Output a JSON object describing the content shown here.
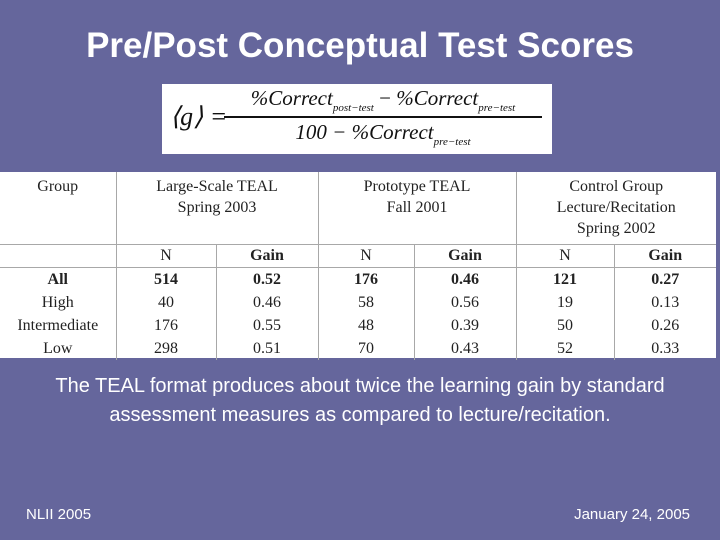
{
  "slide": {
    "title": "Pre/Post Conceptual Test Scores",
    "caption": "The TEAL format produces about twice the learning gain by standard assessment measures as compared to lecture/recitation.",
    "footer_left": "NLII 2005",
    "footer_right": "January 24, 2005"
  },
  "formula": {
    "lhs": "⟨g⟩ =",
    "numerator_a": "%Correct",
    "numerator_a_sub": "post−test",
    "numerator_op": " − ",
    "numerator_b": "%Correct",
    "numerator_b_sub": "pre−test",
    "denominator_a": "100 − %Correct",
    "denominator_sub": "pre−test"
  },
  "table": {
    "group_header": "Group",
    "col1_header_line1": "Large-Scale TEAL",
    "col1_header_line2": "Spring 2003",
    "col2_header_line1": "Prototype TEAL",
    "col2_header_line2": "Fall 2001",
    "col3_header_line1": "Control Group",
    "col3_header_line2": "Lecture/Recitation",
    "col3_header_line3": "Spring 2002",
    "n_label": "N",
    "gain_label": "Gain",
    "rows": [
      {
        "group": "All",
        "n1": "514",
        "g1": "0.52",
        "n2": "176",
        "g2": "0.46",
        "n3": "121",
        "g3": "0.27"
      },
      {
        "group": "High",
        "n1": "40",
        "g1": "0.46",
        "n2": "58",
        "g2": "0.56",
        "n3": "19",
        "g3": "0.13"
      },
      {
        "group": "Intermediate",
        "n1": "176",
        "g1": "0.55",
        "n2": "48",
        "g2": "0.39",
        "n3": "50",
        "g3": "0.26"
      },
      {
        "group": "Low",
        "n1": "298",
        "g1": "0.51",
        "n2": "70",
        "g2": "0.43",
        "n3": "52",
        "g3": "0.33"
      }
    ]
  },
  "colors": {
    "background": "#65669c",
    "text": "#ffffff"
  }
}
